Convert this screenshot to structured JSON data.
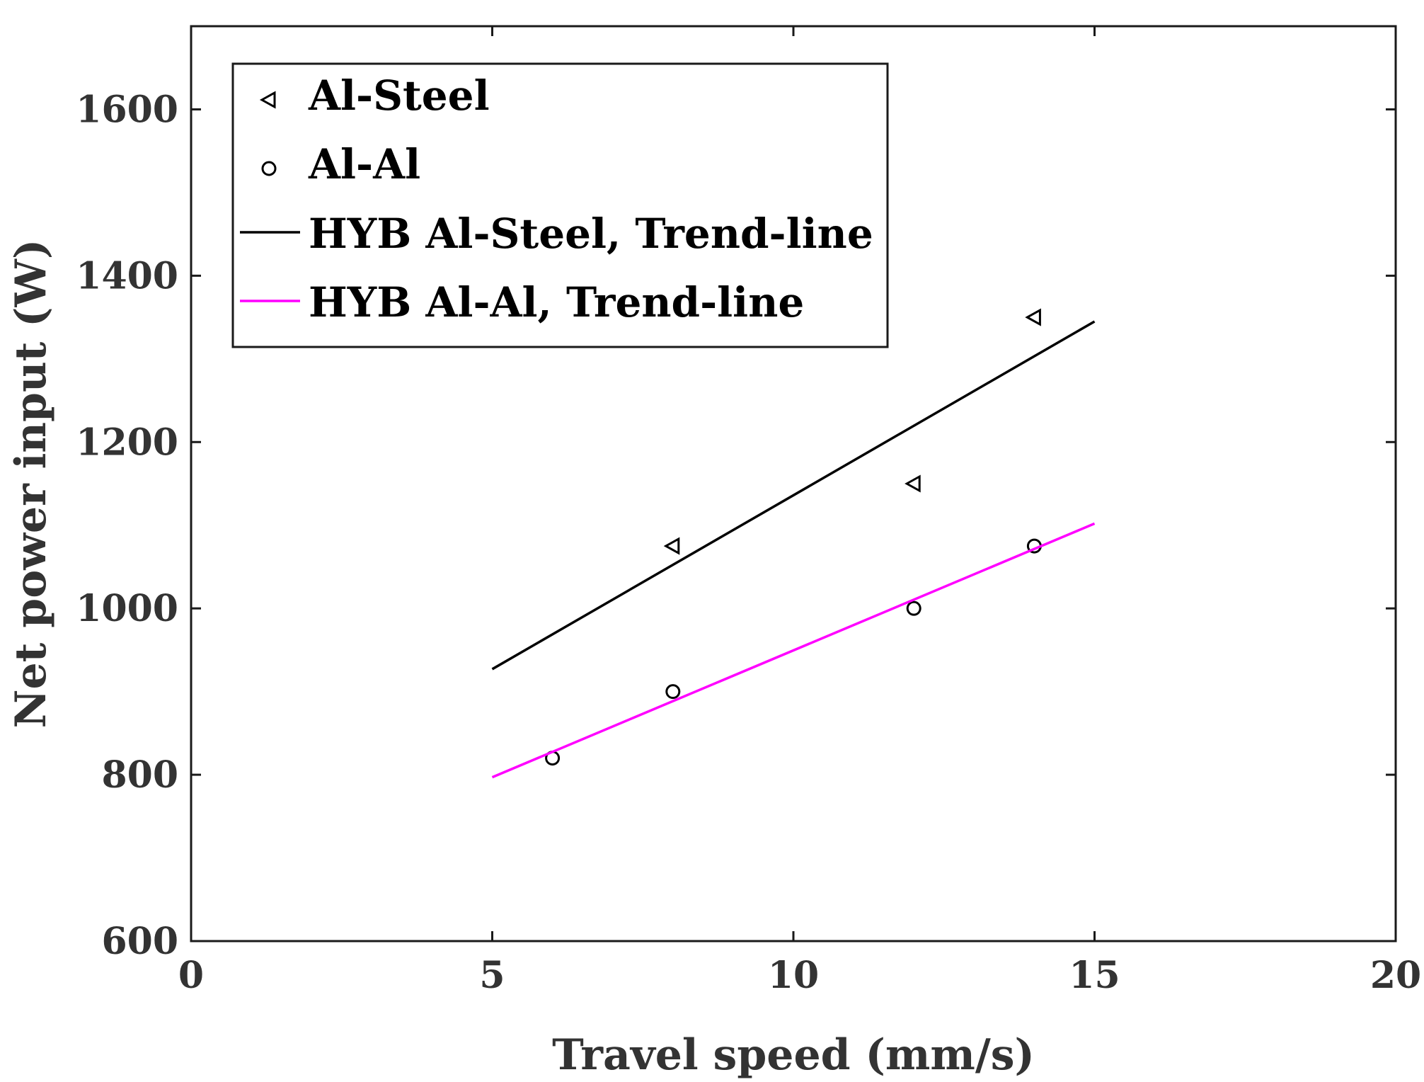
{
  "chart_data": {
    "type": "scatter",
    "xlabel": "Travel speed (mm/s)",
    "ylabel": "Net power input (W)",
    "xlim": [
      0,
      20
    ],
    "ylim": [
      600,
      1700
    ],
    "xticks": [
      0,
      5,
      10,
      15,
      20
    ],
    "yticks": [
      600,
      800,
      1000,
      1200,
      1400,
      1600
    ],
    "xtick_labels": [
      "0",
      "5",
      "10",
      "15",
      "20"
    ],
    "ytick_labels": [
      "600",
      "800",
      "1000",
      "1200",
      "1400",
      "1600"
    ],
    "grid": false,
    "legend_position": "top-left",
    "series": [
      {
        "name": "Al-Steel",
        "kind": "scatter",
        "marker": "triangle-left",
        "color": "#000000",
        "x": [
          8,
          12,
          14
        ],
        "y": [
          1075,
          1150,
          1350
        ]
      },
      {
        "name": "Al-Al",
        "kind": "scatter",
        "marker": "circle",
        "color": "#000000",
        "x": [
          6,
          8,
          12,
          14
        ],
        "y": [
          820,
          900,
          1000,
          1075
        ]
      },
      {
        "name": "HYB Al-Steel, Trend-line",
        "kind": "line",
        "color": "#000000",
        "x": [
          5,
          15
        ],
        "y": [
          927,
          1345
        ]
      },
      {
        "name": "HYB Al-Al, Trend-line",
        "kind": "line",
        "color": "#ff00ff",
        "x": [
          5,
          15
        ],
        "y": [
          797,
          1102
        ]
      }
    ]
  }
}
